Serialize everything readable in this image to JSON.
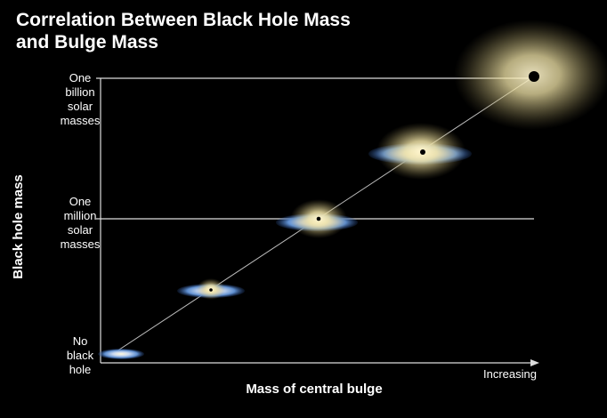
{
  "title": {
    "lines": [
      "Correlation Between Black Hole Mass",
      "and Bulge Mass"
    ]
  },
  "y_axis": {
    "label": "Black hole mass",
    "levels": [
      {
        "lines": [
          "One",
          "billion",
          "solar",
          "masses"
        ]
      },
      {
        "lines": [
          "One",
          "million",
          "solar",
          "masses"
        ]
      },
      {
        "lines": [
          "No",
          "black",
          "hole"
        ]
      }
    ]
  },
  "x_axis": {
    "label": "Mass of central bulge",
    "end_label": "Increasing"
  }
}
